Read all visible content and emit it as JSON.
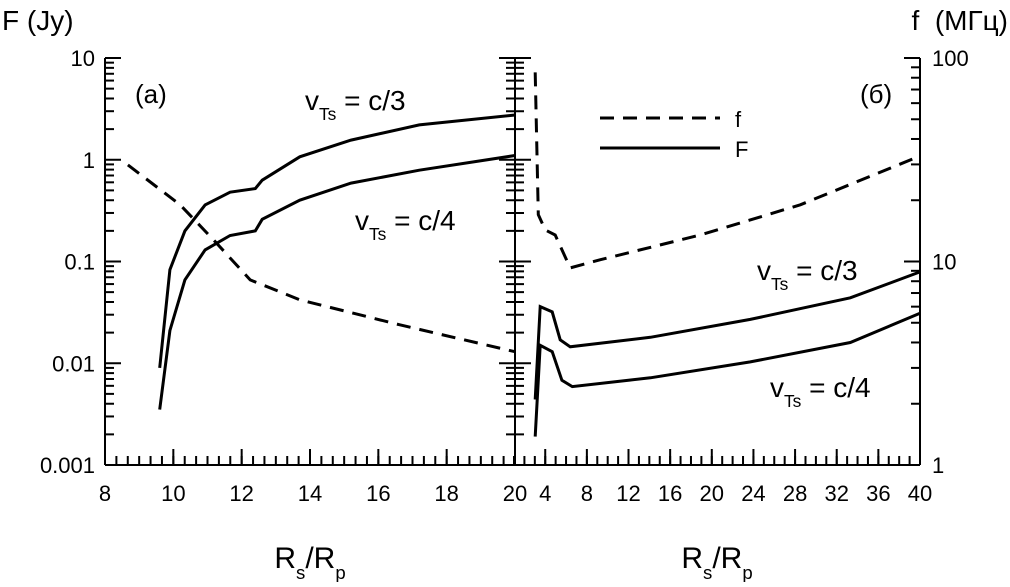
{
  "chart_data": [
    {
      "type": "line",
      "ylabel": "F (Jy)",
      "xlabel": [
        "R",
        "s",
        "/R",
        "p"
      ],
      "panel_label": "(a)",
      "xlim": [
        8,
        20
      ],
      "xticks": [
        8,
        10,
        12,
        14,
        16,
        18,
        20
      ],
      "ylim": [
        0.001,
        10
      ],
      "ylog": true,
      "yticks": [
        0.001,
        0.01,
        0.1,
        1,
        10
      ],
      "series": [
        {
          "color": "#000000",
          "dash": false,
          "x": [
            9.6,
            9.9,
            10.34,
            10.93,
            11.66,
            12.4,
            12.6,
            13.7,
            15.2,
            17.2,
            20
          ],
          "values": [
            0.009,
            0.083,
            0.2,
            0.36,
            0.48,
            0.52,
            0.63,
            1.07,
            1.56,
            2.2,
            2.75
          ]
        },
        {
          "color": "#000000",
          "dash": false,
          "x": [
            9.6,
            9.9,
            10.34,
            10.93,
            11.66,
            12.4,
            12.6,
            13.7,
            15.2,
            17.2,
            20
          ],
          "values": [
            0.0035,
            0.021,
            0.066,
            0.13,
            0.18,
            0.2,
            0.26,
            0.4,
            0.59,
            0.79,
            1.1
          ]
        },
        {
          "color": "#000000",
          "dash": true,
          "x": [
            8.67,
            10.2,
            11.2,
            12.25,
            13.7,
            16.6,
            20
          ],
          "values": [
            0.89,
            0.36,
            0.16,
            0.066,
            0.042,
            0.024,
            0.013
          ]
        }
      ],
      "annotations": [
        [
          "v",
          "Ts",
          " = c/3"
        ],
        [
          "v",
          "Ts",
          " = c/4"
        ]
      ]
    },
    {
      "type": "line",
      "y2label": "f  (МГц)",
      "xlabel": [
        "R",
        "s",
        "/R",
        "p"
      ],
      "panel_label": "(б)",
      "xlim": [
        1,
        40
      ],
      "xticks": [
        4,
        8,
        12,
        16,
        20,
        24,
        28,
        32,
        36,
        40
      ],
      "ylim": [
        0.001,
        10
      ],
      "ylog": true,
      "y2lim": [
        1,
        100
      ],
      "y2log": true,
      "y2ticks": [
        1,
        10,
        100
      ],
      "series": [
        {
          "name": "f",
          "axis": "y2",
          "color": "#000000",
          "dash": true,
          "x": [
            3.04,
            3.33,
            4,
            4.96,
            6.4,
            9.3,
            18.9,
            28.5,
            40
          ],
          "values": [
            85,
            17,
            14.3,
            13.5,
            9.3,
            10.2,
            13.5,
            19,
            33
          ]
        },
        {
          "name": "F",
          "color": "#000000",
          "dash": false,
          "x": [
            3.04,
            3.52,
            4.67,
            5.44,
            6.4,
            14.1,
            23.7,
            33.3,
            40
          ],
          "values": [
            0.0044,
            0.036,
            0.032,
            0.017,
            0.0145,
            0.018,
            0.027,
            0.044,
            0.079
          ]
        },
        {
          "color": "#000000",
          "dash": false,
          "x": [
            3.04,
            3.52,
            4.67,
            5.6,
            6.6,
            14.1,
            23.7,
            33.3,
            40
          ],
          "values": [
            0.0019,
            0.015,
            0.013,
            0.0068,
            0.0059,
            0.0072,
            0.0103,
            0.016,
            0.031
          ]
        }
      ],
      "annotations": [
        [
          "v",
          "Ts",
          " = c/3"
        ],
        [
          "v",
          "Ts",
          " = c/4"
        ]
      ]
    }
  ]
}
